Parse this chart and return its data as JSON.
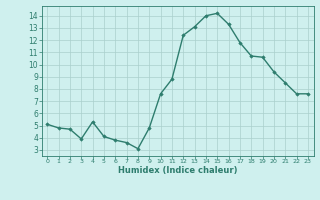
{
  "x": [
    0,
    1,
    2,
    3,
    4,
    5,
    6,
    7,
    8,
    9,
    10,
    11,
    12,
    13,
    14,
    15,
    16,
    17,
    18,
    19,
    20,
    21,
    22,
    23
  ],
  "y": [
    5.1,
    4.8,
    4.7,
    3.9,
    5.3,
    4.1,
    3.8,
    3.6,
    3.1,
    4.8,
    7.6,
    8.8,
    12.4,
    13.1,
    14.0,
    14.2,
    13.3,
    11.8,
    10.7,
    10.6,
    9.4,
    8.5,
    7.6,
    7.6
  ],
  "xlim": [
    -0.5,
    23.5
  ],
  "ylim": [
    2.5,
    14.8
  ],
  "yticks": [
    3,
    4,
    5,
    6,
    7,
    8,
    9,
    10,
    11,
    12,
    13,
    14
  ],
  "xticks": [
    0,
    1,
    2,
    3,
    4,
    5,
    6,
    7,
    8,
    9,
    10,
    11,
    12,
    13,
    14,
    15,
    16,
    17,
    18,
    19,
    20,
    21,
    22,
    23
  ],
  "xlabel": "Humidex (Indice chaleur)",
  "line_color": "#2e7d6e",
  "marker": "D",
  "marker_size": 1.8,
  "bg_color": "#cff0ee",
  "grid_color": "#aacfcc",
  "tick_color": "#2e7d6e",
  "label_color": "#2e7d6e",
  "line_width": 1.0
}
